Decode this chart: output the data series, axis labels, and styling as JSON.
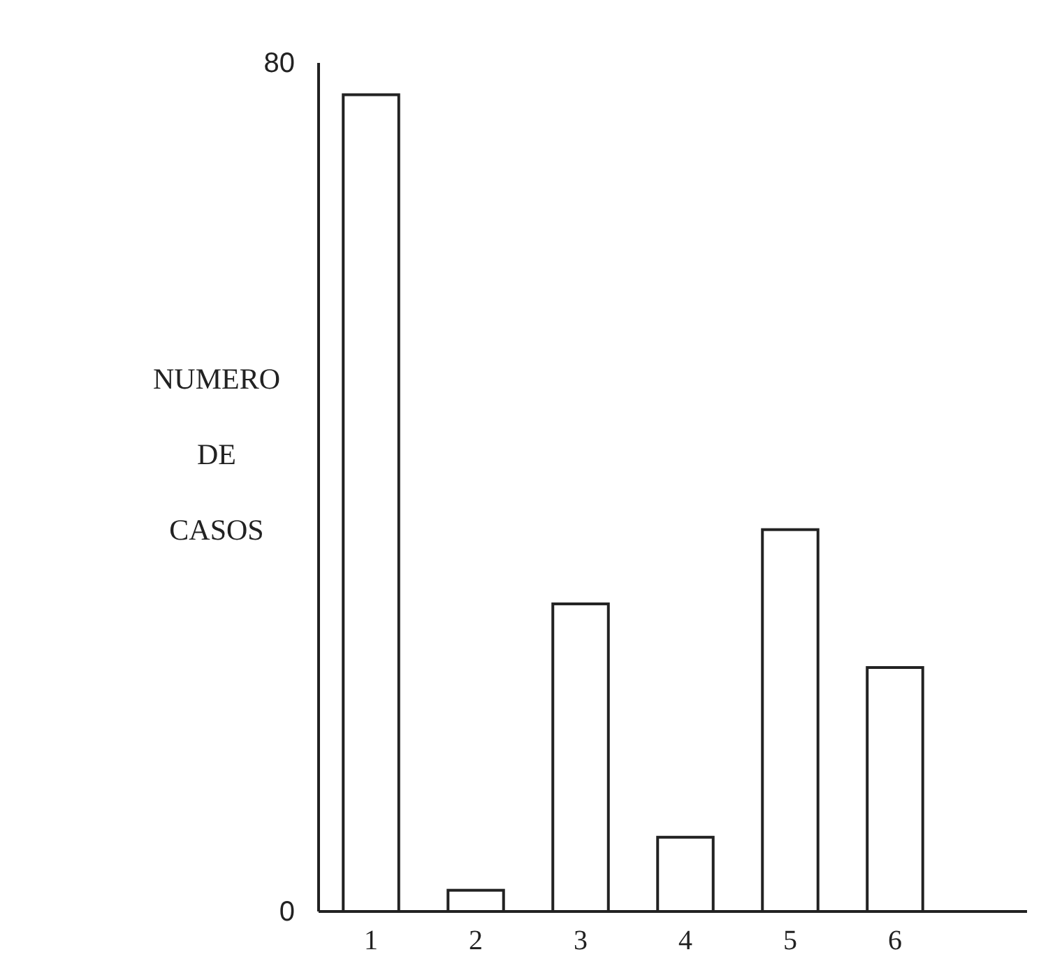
{
  "chart_data": {
    "type": "bar",
    "ylabel": "NUMERO DE CASOS",
    "categories": [
      "1",
      "2",
      "3",
      "4",
      "5",
      "6"
    ],
    "values": [
      77,
      2,
      29,
      7,
      36,
      23
    ],
    "color": "#ffffff",
    "ylim": [
      0,
      80
    ],
    "yticks": [
      0,
      80
    ],
    "grid": false
  }
}
